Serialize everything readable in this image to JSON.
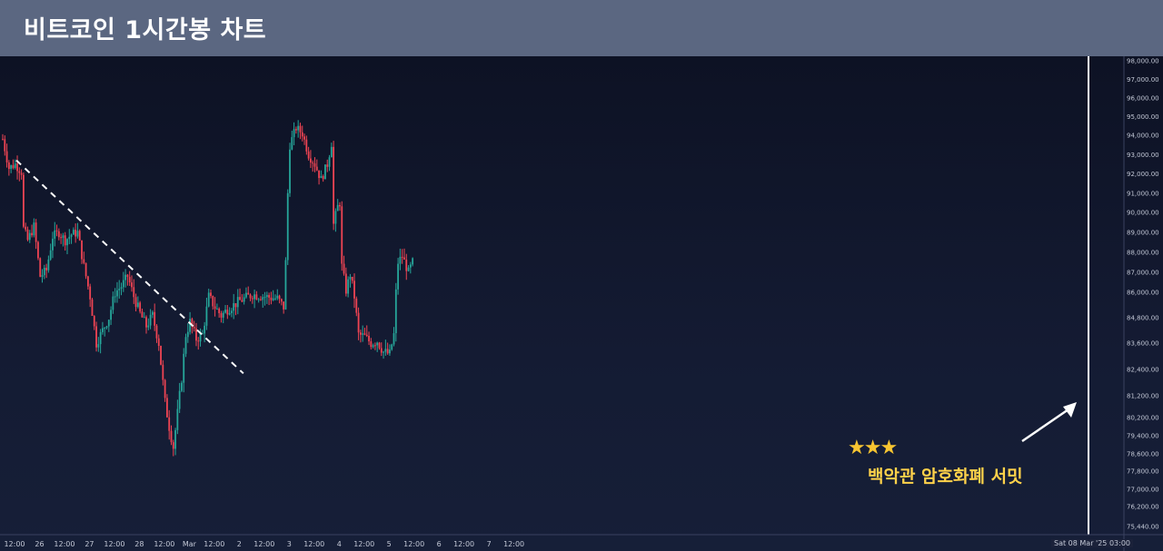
{
  "title": "비트코인 1시간봉 차트",
  "annotation": {
    "stars": "★★★",
    "label": "백악관 암호화폐 서밋",
    "time_label": "Sat 08 Mar '25  03:00"
  },
  "colors": {
    "up": "#26a69a",
    "down": "#ef4453",
    "background": "#131a2e",
    "title_bar": "#5b6781",
    "annotation_text": "#ffd24a",
    "trendline": "#ffffff"
  },
  "chart_data": {
    "type": "candlestick",
    "symbol": "BTC",
    "interval": "1h",
    "y_scale": "price",
    "y_tick_labels": [
      "98,000.00",
      "97,000.00",
      "96,000.00",
      "95,000.00",
      "94,000.00",
      "93,000.00",
      "92,000.00",
      "91,000.00",
      "90,000.00",
      "89,000.00",
      "88,000.00",
      "87,000.00",
      "86,000.00",
      "84,800.00",
      "83,600.00",
      "82,400.00",
      "81,200.00",
      "80,200.00",
      "79,400.00",
      "78,600.00",
      "77,800.00",
      "77,000.00",
      "76,200.00",
      "75,440.00"
    ],
    "x_tick_labels": [
      "12:00",
      "26",
      "12:00",
      "27",
      "12:00",
      "28",
      "12:00",
      "Mar",
      "12:00",
      "2",
      "12:00",
      "3",
      "12:00",
      "4",
      "12:00",
      "5",
      "12:00",
      "6",
      "12:00",
      "7",
      "12:00"
    ],
    "x_tick_times": [
      0,
      12,
      24,
      36,
      48,
      60,
      72,
      84,
      96,
      108,
      120,
      132,
      144,
      156,
      168,
      180,
      192,
      204,
      216,
      228,
      240
    ],
    "time_unit": "hours since Feb 25 12:00",
    "trendline": {
      "start": [
        0,
        92700
      ],
      "end": [
        96,
        82800
      ],
      "style": "dashed"
    },
    "event_marker_time": 258,
    "grid": false,
    "ohlc_keyframes": [
      [
        0,
        93800
      ],
      [
        3,
        92300
      ],
      [
        6,
        92500
      ],
      [
        9,
        92100
      ],
      [
        10,
        89200
      ],
      [
        12,
        88600
      ],
      [
        15,
        89300
      ],
      [
        18,
        86800
      ],
      [
        21,
        87100
      ],
      [
        24,
        88800
      ],
      [
        27,
        89000
      ],
      [
        30,
        88600
      ],
      [
        33,
        88900
      ],
      [
        36,
        89000
      ],
      [
        39,
        87300
      ],
      [
        42,
        85800
      ],
      [
        45,
        83600
      ],
      [
        48,
        84200
      ],
      [
        51,
        84800
      ],
      [
        54,
        86000
      ],
      [
        57,
        86300
      ],
      [
        60,
        86800
      ],
      [
        63,
        85800
      ],
      [
        66,
        85000
      ],
      [
        69,
        84400
      ],
      [
        72,
        84900
      ],
      [
        75,
        83600
      ],
      [
        78,
        80900
      ],
      [
        80,
        79800
      ],
      [
        82,
        78900
      ],
      [
        84,
        80400
      ],
      [
        86,
        82000
      ],
      [
        88,
        84000
      ],
      [
        90,
        84600
      ],
      [
        93,
        83800
      ],
      [
        96,
        84000
      ],
      [
        99,
        85800
      ],
      [
        102,
        85300
      ],
      [
        105,
        84900
      ],
      [
        108,
        85200
      ],
      [
        114,
        85600
      ],
      [
        120,
        85900
      ],
      [
        126,
        85800
      ],
      [
        132,
        85700
      ],
      [
        135,
        85300
      ],
      [
        136,
        87500
      ],
      [
        137,
        91000
      ],
      [
        138,
        93500
      ],
      [
        141,
        94400
      ],
      [
        144,
        94100
      ],
      [
        147,
        93000
      ],
      [
        150,
        92500
      ],
      [
        153,
        91700
      ],
      [
        156,
        92500
      ],
      [
        158,
        93600
      ],
      [
        159,
        89400
      ],
      [
        161,
        90300
      ],
      [
        162,
        90500
      ],
      [
        163,
        87300
      ],
      [
        165,
        86100
      ],
      [
        167,
        86900
      ],
      [
        169,
        85800
      ],
      [
        171,
        84000
      ],
      [
        174,
        83900
      ],
      [
        177,
        83600
      ],
      [
        180,
        83700
      ],
      [
        183,
        83200
      ],
      [
        186,
        83100
      ],
      [
        188,
        84000
      ],
      [
        189,
        86000
      ],
      [
        190,
        87500
      ],
      [
        192,
        87800
      ],
      [
        195,
        87000
      ],
      [
        197,
        87500
      ]
    ]
  }
}
